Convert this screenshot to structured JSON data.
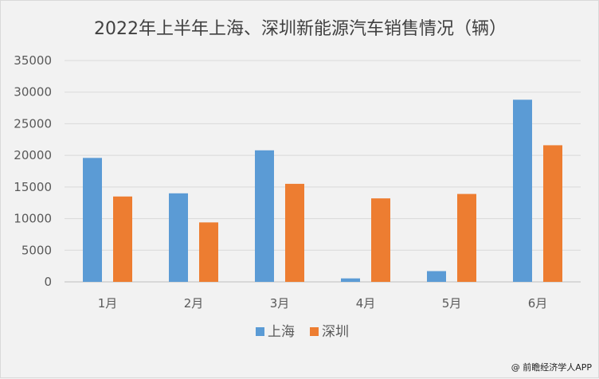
{
  "chart_data": {
    "type": "bar",
    "title": "2022年上半年上海、深圳新能源汽车销售情况（辆）",
    "categories": [
      "1月",
      "2月",
      "3月",
      "4月",
      "5月",
      "6月"
    ],
    "series": [
      {
        "name": "上海",
        "values": [
          19600,
          14000,
          20800,
          550,
          1700,
          28800
        ]
      },
      {
        "name": "深圳",
        "values": [
          13500,
          9400,
          15500,
          13200,
          13900,
          21600
        ]
      }
    ],
    "xlabel": "",
    "ylabel": "",
    "ylim": [
      0,
      35000
    ],
    "yticks": [
      "0",
      "5000",
      "10000",
      "15000",
      "20000",
      "25000",
      "30000",
      "35000"
    ],
    "grid": true,
    "legend_position": "bottom",
    "colors": {
      "上海": "#5b9bd5",
      "深圳": "#ed7d31"
    }
  },
  "watermark": "@ 前瞻经济学人APP"
}
